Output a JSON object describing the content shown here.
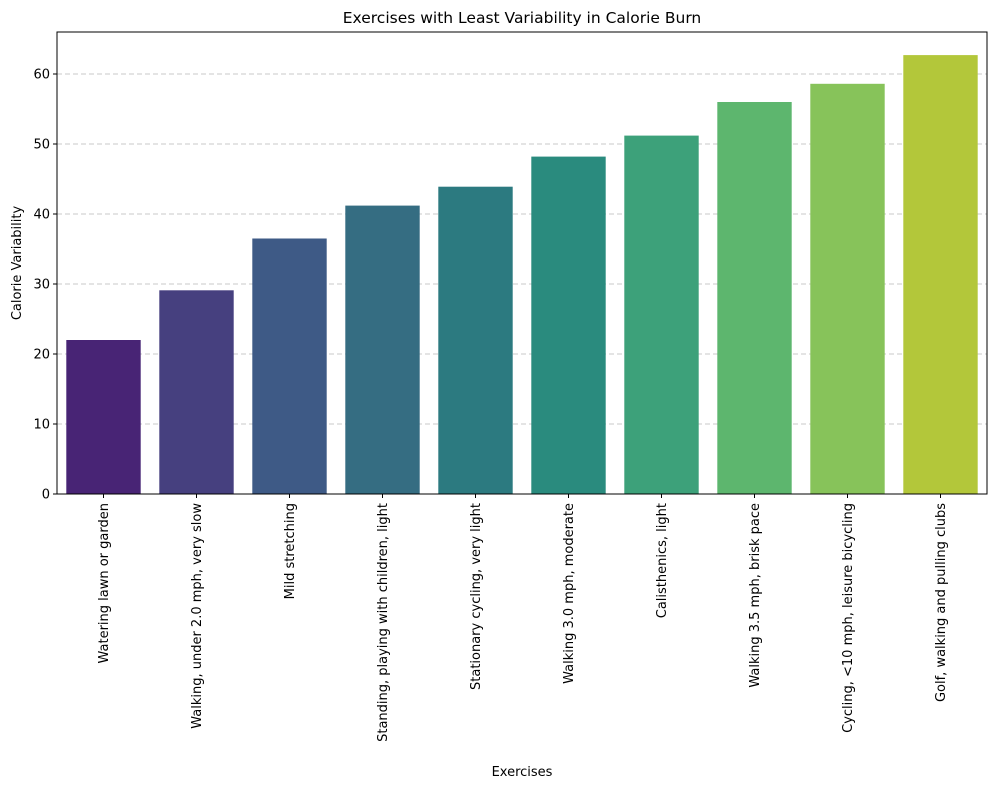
{
  "chart_data": {
    "type": "bar",
    "title": "Exercises with Least Variability in Calorie Burn",
    "xlabel": "Exercises",
    "ylabel": "Calorie Variability",
    "ylim": [
      0,
      66
    ],
    "yticks": [
      0,
      10,
      20,
      30,
      40,
      50,
      60
    ],
    "grid": "y-dashed",
    "categories": [
      "Watering lawn or garden",
      "Walking, under 2.0 mph, very slow",
      "Mild stretching",
      "Standing, playing with children, light",
      "Stationary cycling, very light",
      "Walking 3.0 mph, moderate",
      "Calisthenics, light",
      "Walking 3.5 mph, brisk pace",
      "Cycling, <10 mph, leisure bicycling",
      "Golf, walking and pulling clubs"
    ],
    "values": [
      22.0,
      29.1,
      36.5,
      41.2,
      43.9,
      48.2,
      51.2,
      56.0,
      58.6,
      62.7
    ],
    "colors": [
      "#482475",
      "#46407f",
      "#3e5a86",
      "#356d82",
      "#2c7a80",
      "#2a8b7e",
      "#3da17a",
      "#5db66e",
      "#87c35a",
      "#b3c73a"
    ]
  }
}
